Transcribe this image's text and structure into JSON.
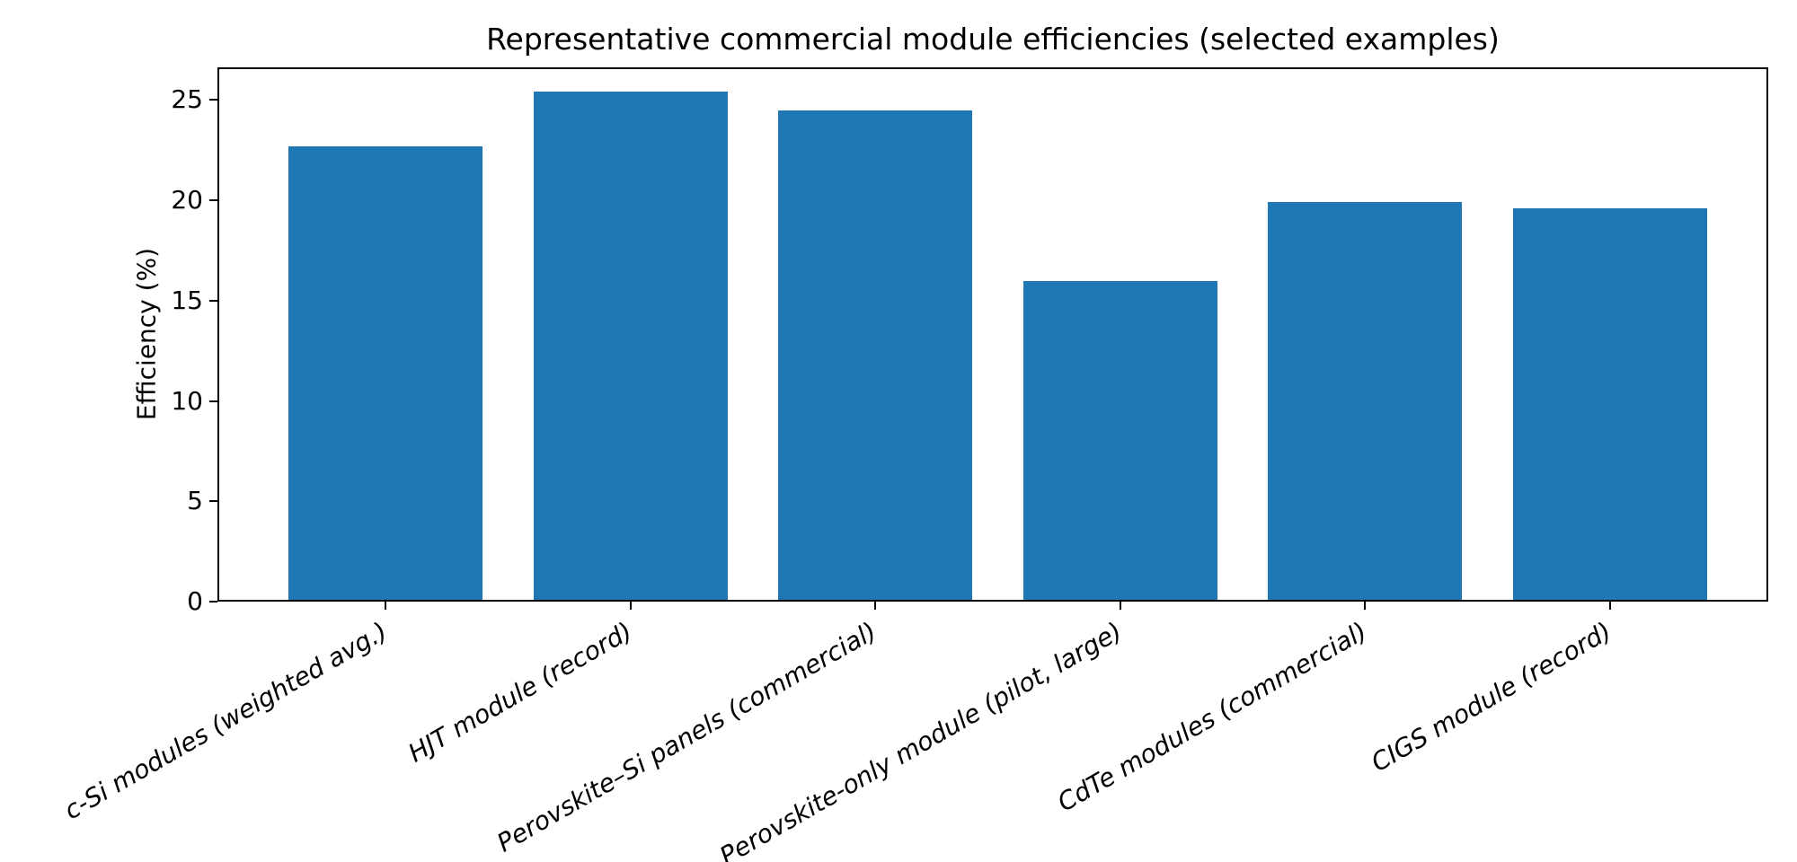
{
  "chart_data": {
    "type": "bar",
    "title": "Representative commercial module efficiencies (selected examples)",
    "xlabel": "",
    "ylabel": "Efficiency (%)",
    "categories": [
      "c-Si modules (weighted avg.)",
      "HJT module (record)",
      "Perovskite–Si panels (commercial)",
      "Perovskite-only module (pilot, large)",
      "CdTe modules (commercial)",
      "CIGS module (record)"
    ],
    "values": [
      22.7,
      25.4,
      24.5,
      16.0,
      19.9,
      19.6
    ],
    "yticks": [
      0,
      5,
      10,
      15,
      20,
      25
    ],
    "ylim": [
      0,
      26.6
    ],
    "grid": false,
    "legend": "none",
    "bar_color": "#1f77b4",
    "axis_color": "#000000",
    "xtick_label_style": "italic, rotated 30°, right-anchored"
  }
}
